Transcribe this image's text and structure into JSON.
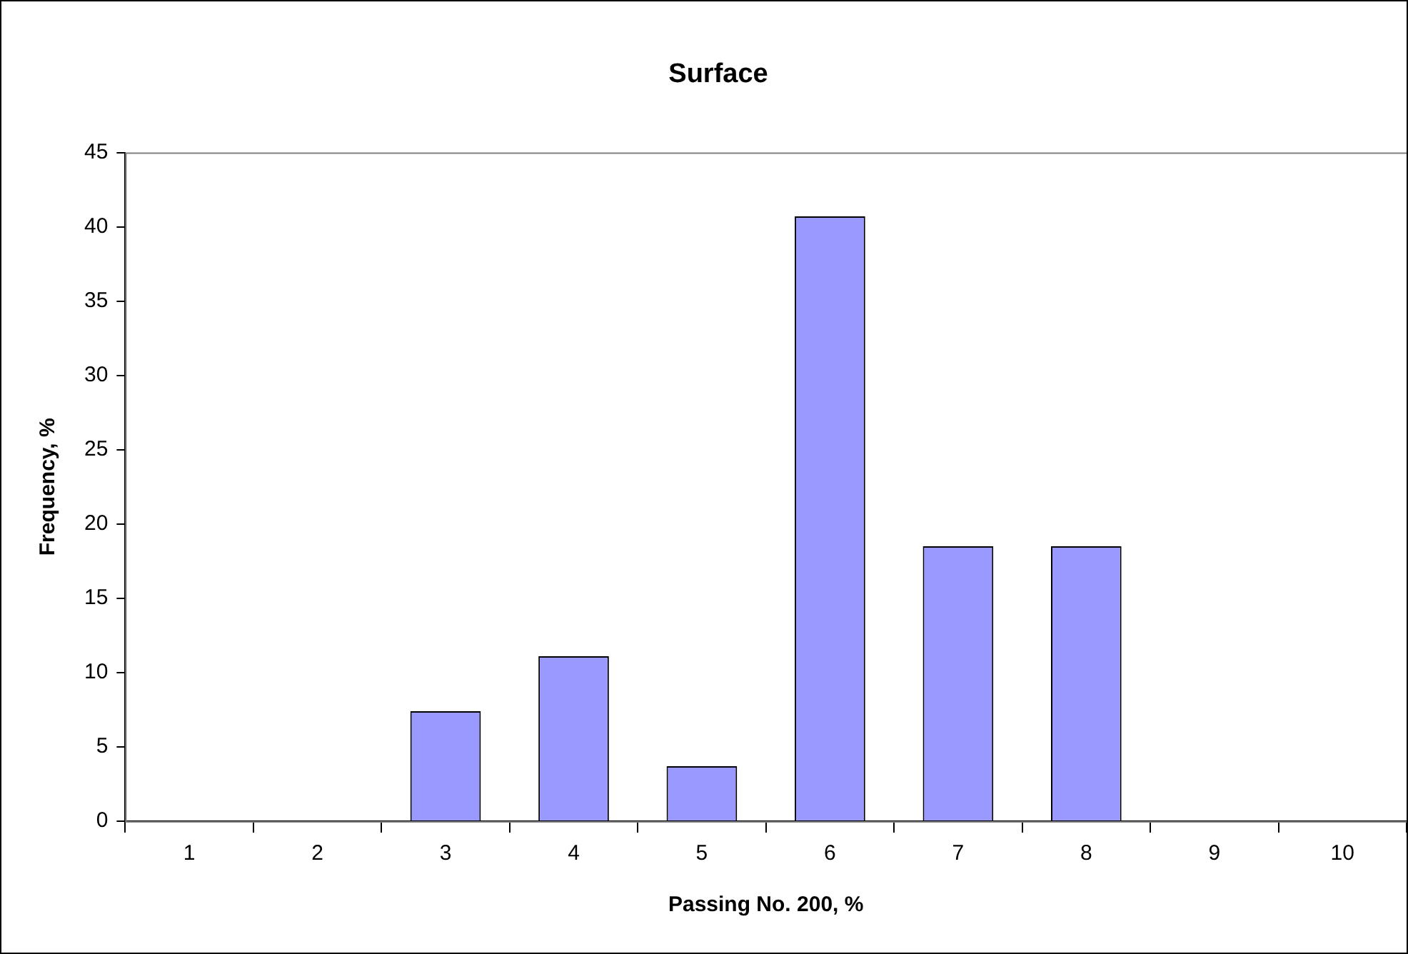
{
  "chart_data": {
    "type": "bar",
    "title": "Surface",
    "xlabel": "Passing No. 200, %",
    "ylabel": "Frequency, %",
    "categories": [
      "1",
      "2",
      "3",
      "4",
      "5",
      "6",
      "7",
      "8",
      "9",
      "10"
    ],
    "values": [
      0,
      0,
      7.4,
      11.1,
      3.7,
      40.7,
      18.5,
      18.5,
      0,
      0
    ],
    "color": "#9999ff",
    "ylim": [
      0,
      45
    ],
    "yticks": [
      0,
      5,
      10,
      15,
      20,
      25,
      30,
      35,
      40,
      45
    ],
    "grid": false,
    "legend": false
  }
}
